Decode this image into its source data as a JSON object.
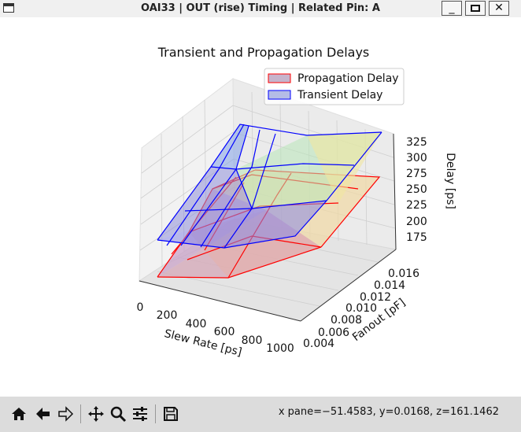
{
  "window": {
    "title": "OAI33 | OUT (rise) Timing | Related Pin: A",
    "min_label": "_",
    "close_label": "✕"
  },
  "chart_data": {
    "type": "surface3d",
    "title": "Transient and Propagation Delays",
    "xlabel": "Slew Rate [ps]",
    "ylabel": "Fanout [pF]",
    "zlabel": "Delay [ps]",
    "x_ticks": [
      "0",
      "200",
      "400",
      "600",
      "800",
      "1000"
    ],
    "y_ticks": [
      "0.004",
      "0.006",
      "0.008",
      "0.010",
      "0.012",
      "0.014",
      "0.016"
    ],
    "z_ticks": [
      "175",
      "200",
      "225",
      "250",
      "275",
      "300",
      "325"
    ],
    "legend": {
      "placement": "top-right",
      "entries": [
        {
          "label": "Propagation Delay",
          "color": "#ff0000"
        },
        {
          "label": "Transient Delay",
          "color": "#0000ff"
        }
      ]
    },
    "grid": true,
    "series": [
      {
        "name": "Propagation Delay",
        "color": "#ff0000"
      },
      {
        "name": "Transient Delay",
        "color": "#0000ff"
      }
    ]
  },
  "toolbar": {
    "items": [
      {
        "name": "home-icon"
      },
      {
        "name": "back-icon"
      },
      {
        "name": "forward-icon"
      },
      {
        "name": "pan-icon"
      },
      {
        "name": "zoom-icon"
      },
      {
        "name": "configure-subplots-icon"
      },
      {
        "name": "save-icon"
      }
    ],
    "coords": "x pane=−51.4583, y=0.0168, z=161.1462"
  }
}
